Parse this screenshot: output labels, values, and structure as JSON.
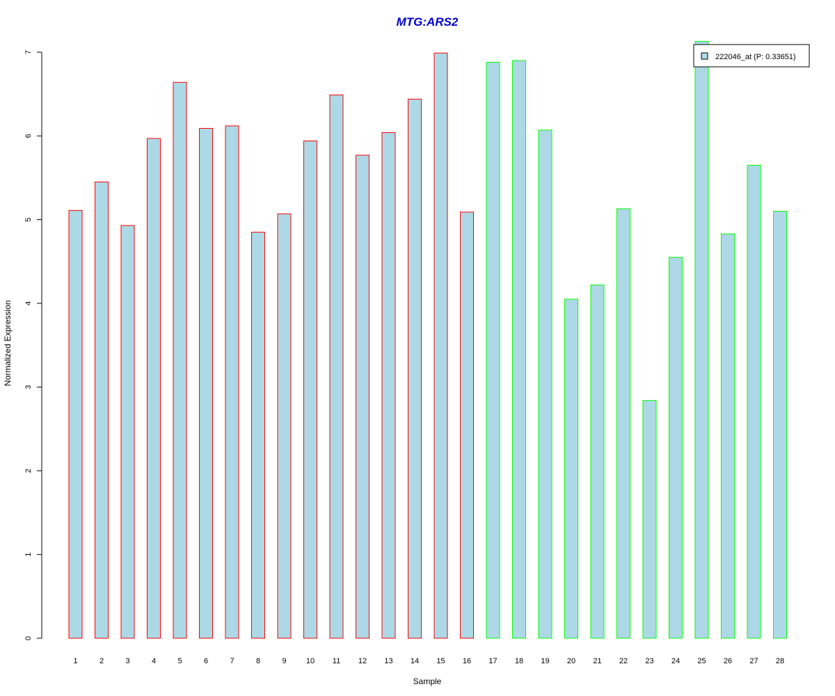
{
  "chart_data": {
    "type": "bar",
    "title": "MTG:ARS2",
    "xlabel": "Sample",
    "ylabel": "Normalized Expression",
    "ylim": [
      0,
      7
    ],
    "yticks": [
      "0",
      "1",
      "2",
      "3",
      "4",
      "5",
      "6",
      "7"
    ],
    "categories": [
      "1",
      "2",
      "3",
      "4",
      "5",
      "6",
      "7",
      "8",
      "9",
      "10",
      "11",
      "12",
      "13",
      "14",
      "15",
      "16",
      "17",
      "18",
      "19",
      "20",
      "21",
      "22",
      "23",
      "24",
      "25",
      "26",
      "27",
      "28"
    ],
    "values": [
      5.11,
      5.45,
      4.93,
      5.97,
      6.64,
      6.09,
      6.12,
      4.85,
      5.07,
      5.94,
      6.49,
      5.77,
      6.04,
      6.44,
      6.99,
      5.09,
      6.88,
      6.9,
      6.07,
      4.05,
      4.22,
      5.13,
      2.84,
      4.55,
      7.13,
      4.83,
      5.65,
      5.1
    ],
    "fill_color": "#add8e6",
    "group_border_colors": [
      "#ff0000",
      "#00ff00"
    ],
    "group_of_bar": [
      0,
      0,
      0,
      0,
      0,
      0,
      0,
      0,
      0,
      0,
      0,
      0,
      0,
      0,
      0,
      0,
      1,
      1,
      1,
      1,
      1,
      1,
      1,
      1,
      1,
      1,
      1,
      1
    ],
    "grid": false,
    "legend": {
      "label": "222046_at (P: 0.33651)",
      "placement": "top-right",
      "swatch_color": "#add8e6"
    }
  }
}
